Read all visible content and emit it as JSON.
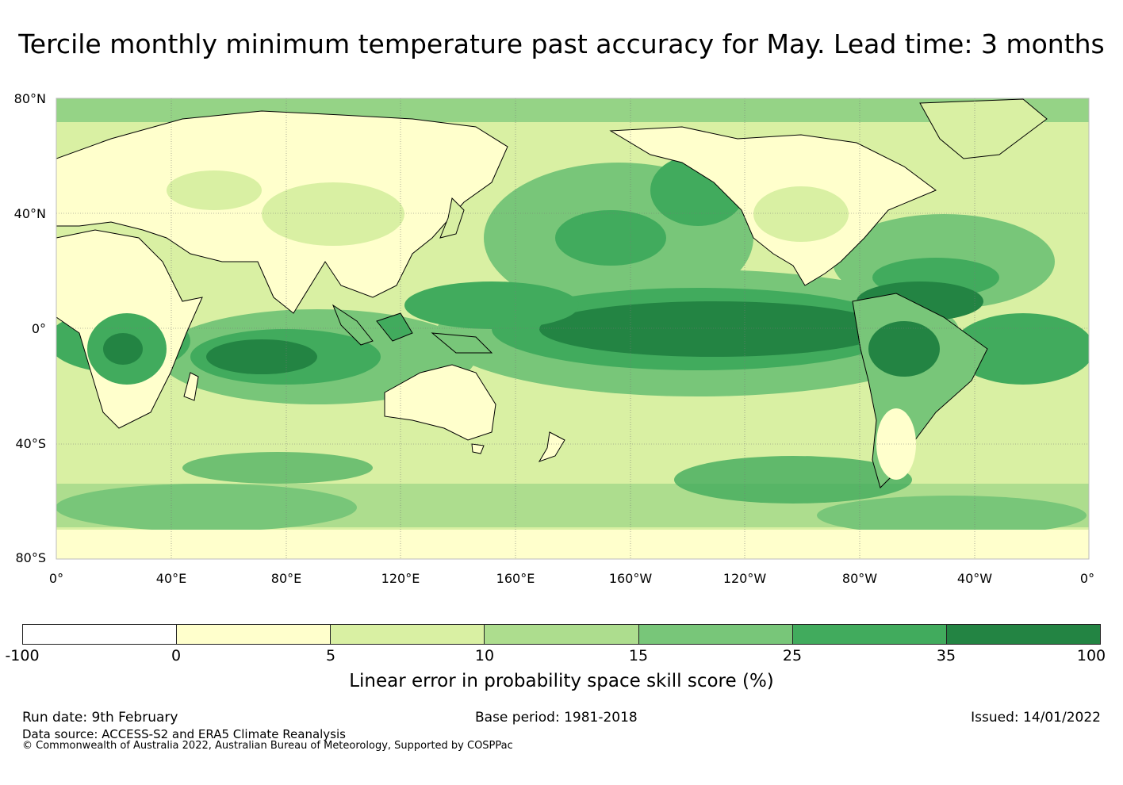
{
  "title": "Tercile monthly minimum temperature past accuracy for May. Lead time: 3 months",
  "map": {
    "lat_labels": [
      "80°N",
      "40°N",
      "0°",
      "40°S",
      "80°S"
    ],
    "lon_labels": [
      "0°",
      "40°E",
      "80°E",
      "120°E",
      "160°E",
      "160°W",
      "120°W",
      "80°W",
      "40°W",
      "0°"
    ],
    "colors": {
      "ocean_neutral": "#d9f0a3",
      "band_high": "#238443",
      "band_mid": "#41ab5d",
      "band_low": "#78c679",
      "land_low": "#ffffcc",
      "coast": "#000000"
    }
  },
  "colorbar": {
    "ticks": [
      "-100",
      "0",
      "5",
      "10",
      "15",
      "25",
      "35",
      "100"
    ],
    "colors": [
      "#ffffff",
      "#ffffcc",
      "#d9f0a3",
      "#addd8e",
      "#78c679",
      "#41ab5d",
      "#238443"
    ],
    "label": "Linear error in probability space skill score (%)"
  },
  "footer": {
    "run_date": "Run date: 9th February",
    "base_period": "Base period: 1981-2018",
    "issued": "Issued: 14/01/2022",
    "data_source": "Data source: ACCESS-S2 and ERA5 Climate Reanalysis",
    "copyright": "© Commonwealth of Australia 2022, Australian Bureau of Meteorology, Supported by COSPPac"
  }
}
